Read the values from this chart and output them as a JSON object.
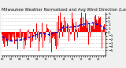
{
  "title": "Milwaukee Weather Normalized and Avg Wind Direction (Last 24 Hours)",
  "title_fontsize": 3.8,
  "background_color": "#f0f0f0",
  "plot_bg_color": "#ffffff",
  "grid_color": "#bbbbbb",
  "bar_color": "#ff0000",
  "line_color": "#0000dd",
  "ylim": [
    -6.5,
    5.5
  ],
  "ytick_vals": [
    -5,
    -4,
    -3,
    -2,
    -1,
    0,
    1,
    2,
    3,
    4,
    5
  ],
  "n_points": 288,
  "seed": 7
}
